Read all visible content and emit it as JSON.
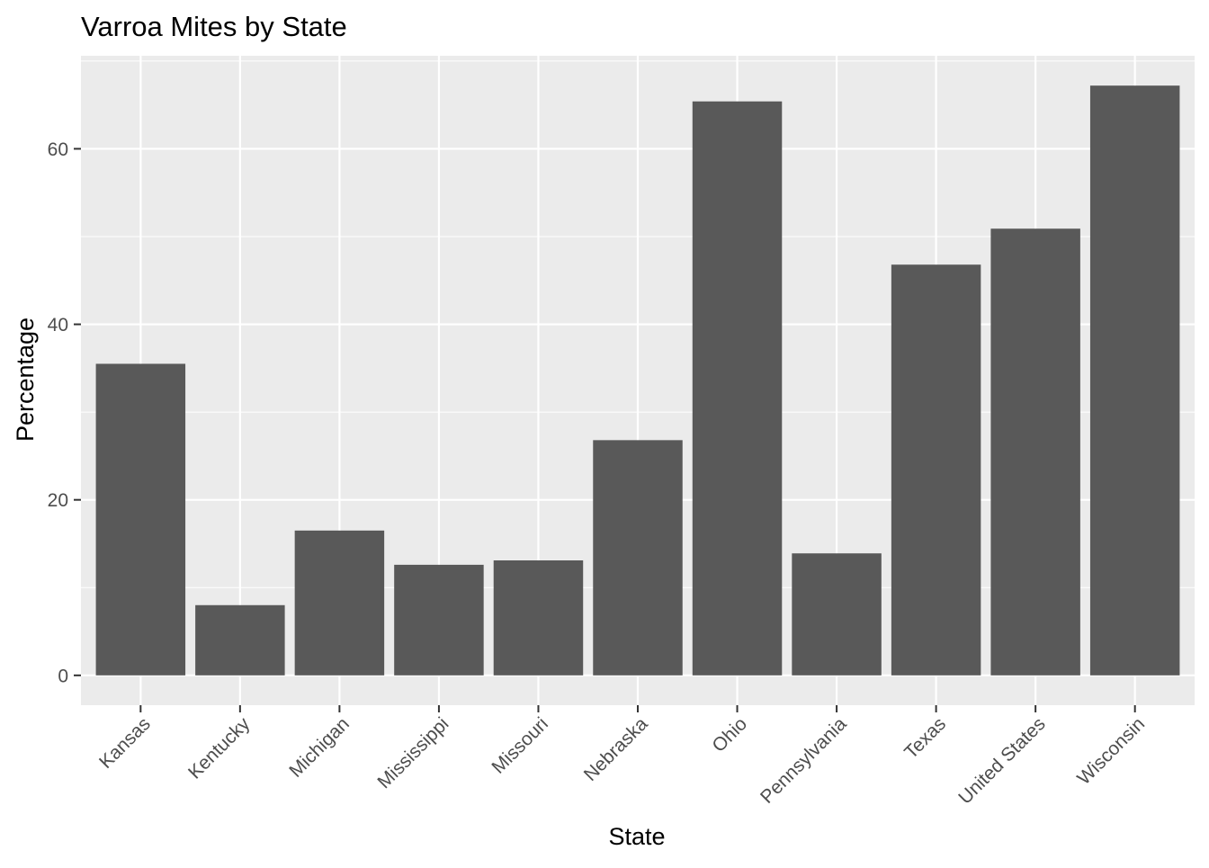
{
  "chart_data": {
    "type": "bar",
    "title": "Varroa Mites by State",
    "xlabel": "State",
    "ylabel": "Percentage",
    "categories": [
      "Kansas",
      "Kentucky",
      "Michigan",
      "Mississippi",
      "Missouri",
      "Nebraska",
      "Ohio",
      "Pennsylvania",
      "Texas",
      "United States",
      "Wisconsin"
    ],
    "values": [
      35.5,
      8.0,
      16.5,
      12.6,
      13.1,
      26.8,
      65.4,
      13.9,
      46.8,
      50.9,
      67.2
    ],
    "ylim": [
      -3.4,
      70.6
    ],
    "yticks": [
      0,
      20,
      40,
      60
    ],
    "ytick_labels": [
      "0",
      "20",
      "40",
      "60"
    ],
    "grid": true,
    "legend": "none",
    "colors": {
      "bar": "#595959",
      "panel_background": "#ebebeb",
      "grid": "#ffffff",
      "tick": "#333333"
    }
  }
}
